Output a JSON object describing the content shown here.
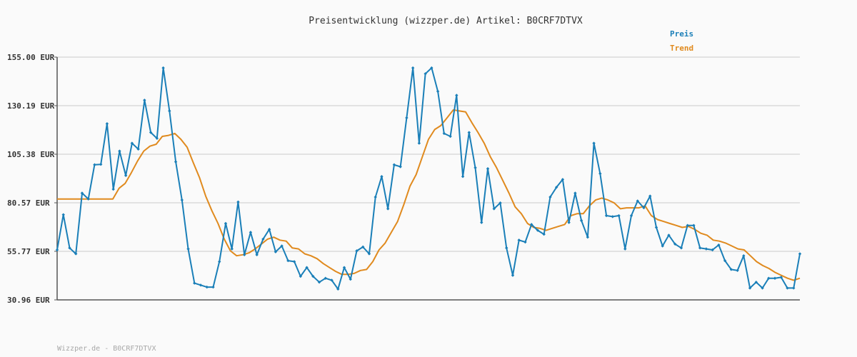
{
  "chart_data": {
    "type": "line",
    "title": "Preisentwicklung (wizzper.de) Artikel: B0CRF7DTVX",
    "xlabel": "",
    "ylabel": "",
    "ylim": [
      30.96,
      155.0
    ],
    "yticks": [
      "155.00 EUR",
      "130.19 EUR",
      "105.38 EUR",
      "80.57 EUR",
      "55.77 EUR",
      "30.96 EUR"
    ],
    "grid": true,
    "legend": "top-right",
    "series": [
      {
        "name": "Preis",
        "color": "#1a7fb8",
        "values": [
          56.5,
          74.5,
          57.5,
          54.5,
          85.5,
          82.5,
          100,
          100.2,
          121,
          87.5,
          107,
          94.5,
          111,
          108,
          133,
          116.5,
          113.5,
          149.5,
          127.5,
          101.5,
          82,
          57,
          39.5,
          38.5,
          37.5,
          37.5,
          50.5,
          70,
          57,
          81,
          54,
          65.5,
          54,
          62,
          67,
          55.5,
          58.5,
          51,
          50.5,
          43,
          47.5,
          43,
          40,
          42,
          41,
          36.5,
          47.5,
          41.5,
          56,
          58,
          54.5,
          83.5,
          94,
          77.5,
          100,
          99,
          124,
          149.5,
          111,
          146.5,
          149.5,
          137.5,
          116,
          114.5,
          135.5,
          94,
          116.5,
          98.5,
          70.5,
          98,
          77.5,
          80.5,
          57.5,
          43.5,
          61.5,
          60.5,
          69.5,
          66.5,
          64.5,
          83.5,
          88.5,
          92.5,
          70.5,
          85.5,
          71.5,
          63,
          111,
          95.5,
          74,
          73.5,
          74,
          57,
          74,
          81.5,
          78,
          84,
          68,
          58.5,
          64,
          59.5,
          57.5,
          69,
          69,
          57.5,
          57,
          56.5,
          59,
          51,
          46.5,
          46,
          53.5,
          37,
          40,
          37,
          42,
          42,
          42.5,
          37,
          37,
          54.5
        ]
      },
      {
        "name": "Trend",
        "color": "#e08a1e",
        "values": [
          82.5,
          82.5,
          82.5,
          82.5,
          82.5,
          82.5,
          82.5,
          82.5,
          82.5,
          82.5,
          88,
          90.5,
          96,
          102,
          107,
          109.5,
          110.5,
          114.5,
          115,
          116,
          113,
          109,
          101,
          93.5,
          84,
          76.5,
          70,
          62,
          56,
          53.5,
          54,
          55,
          57,
          59.5,
          62,
          63,
          61.5,
          61,
          57.5,
          57,
          54.5,
          53.5,
          52,
          49.5,
          47.5,
          45.5,
          44,
          44,
          44.5,
          46,
          46.5,
          50.5,
          56.5,
          60,
          65.5,
          71,
          79.5,
          89,
          95,
          104,
          113,
          118,
          120,
          124,
          128,
          127.5,
          127,
          121.5,
          116.5,
          111,
          104,
          98.5,
          92,
          85.5,
          78.5,
          75,
          70,
          68,
          67.5,
          66.5,
          67.5,
          68.5,
          69.5,
          74,
          75,
          75,
          79,
          82,
          83,
          82,
          80.5,
          77.5,
          78,
          78,
          78,
          79,
          74,
          72,
          71,
          70,
          69,
          68,
          68.5,
          67,
          65,
          64,
          61.5,
          61,
          60,
          58.5,
          57,
          56.5,
          53.5,
          50.5,
          48.5,
          47,
          45,
          43.5,
          42,
          41,
          42
        ]
      }
    ]
  },
  "footer": "Wizzper.de - B0CRF7DTVX"
}
